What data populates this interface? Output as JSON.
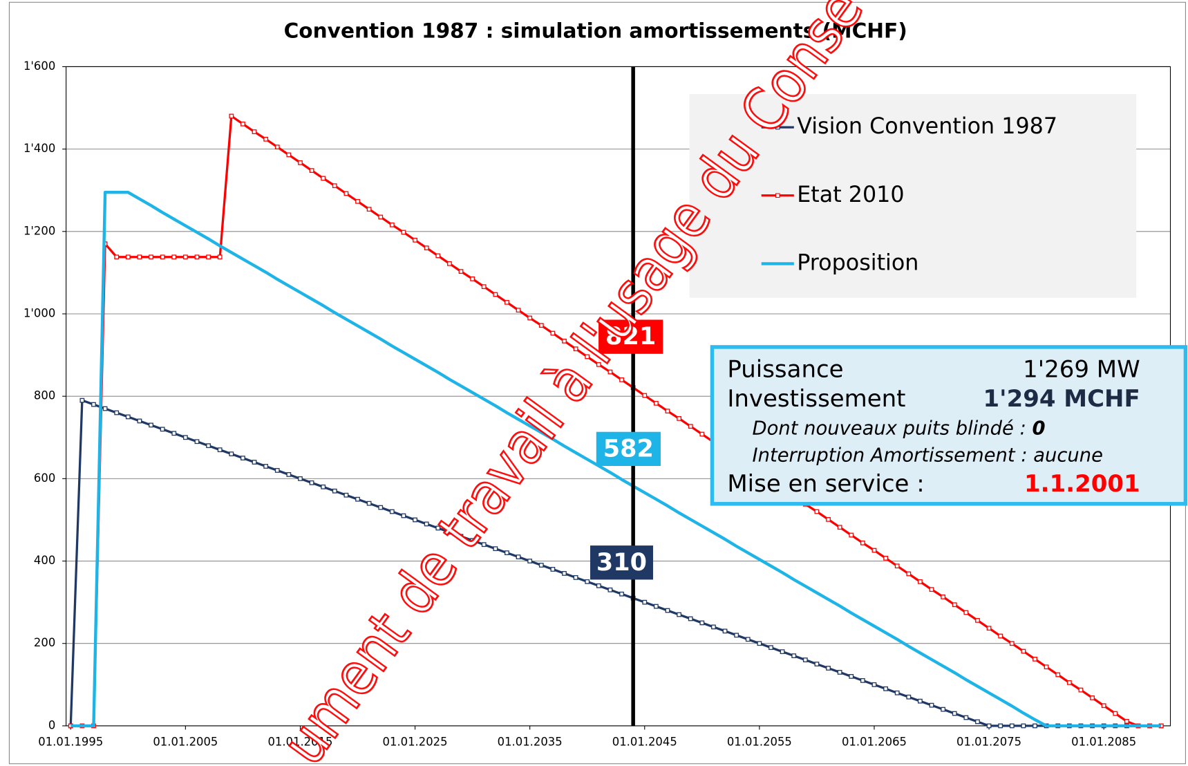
{
  "chart_data": {
    "type": "line",
    "title": "Convention 1987 : simulation amortissements (MCHF)",
    "x": [
      1995,
      1996,
      1997,
      1998,
      1999,
      2000,
      2001,
      2002,
      2003,
      2004,
      2005,
      2006,
      2007,
      2008,
      2009,
      2010,
      2011,
      2012,
      2013,
      2014,
      2015,
      2016,
      2017,
      2018,
      2019,
      2020,
      2021,
      2022,
      2023,
      2024,
      2025,
      2026,
      2027,
      2028,
      2029,
      2030,
      2031,
      2032,
      2033,
      2034,
      2035,
      2036,
      2037,
      2038,
      2039,
      2040,
      2041,
      2042,
      2043,
      2044,
      2045,
      2046,
      2047,
      2048,
      2049,
      2050,
      2051,
      2052,
      2053,
      2054,
      2055,
      2056,
      2057,
      2058,
      2059,
      2060,
      2061,
      2062,
      2063,
      2064,
      2065,
      2066,
      2067,
      2068,
      2069,
      2070,
      2071,
      2072,
      2073,
      2074,
      2075,
      2076,
      2077,
      2078,
      2079,
      2080,
      2081,
      2082,
      2083,
      2084,
      2085,
      2086,
      2087,
      2088,
      2089,
      2090
    ],
    "series": [
      {
        "name": "Vision Convention 1987",
        "color": "#1f3864",
        "markers": true,
        "values": [
          0,
          790,
          780,
          770,
          760,
          750,
          740,
          730,
          720,
          710,
          700,
          690,
          680,
          670,
          660,
          650,
          640,
          630,
          620,
          610,
          600,
          590,
          580,
          570,
          560,
          550,
          540,
          530,
          520,
          510,
          500,
          490,
          480,
          470,
          460,
          450,
          440,
          430,
          420,
          410,
          400,
          390,
          380,
          370,
          360,
          350,
          340,
          330,
          320,
          310,
          300,
          290,
          280,
          270,
          260,
          250,
          240,
          230,
          220,
          210,
          200,
          190,
          180,
          170,
          160,
          150,
          140,
          130,
          120,
          110,
          100,
          90,
          80,
          70,
          60,
          50,
          40,
          30,
          20,
          10,
          0,
          0,
          0,
          0,
          0,
          0,
          0,
          0,
          0,
          0,
          0,
          0,
          0,
          0,
          0,
          0
        ]
      },
      {
        "name": "Etat 2010",
        "color": "#ff0000",
        "markers": true,
        "values": [
          0,
          0,
          0,
          1170,
          1138,
          1138,
          1138,
          1138,
          1138,
          1138,
          1138,
          1138,
          1138,
          1138,
          1480,
          1461,
          1442,
          1424,
          1405,
          1386,
          1367,
          1348,
          1329,
          1311,
          1292,
          1273,
          1254,
          1235,
          1216,
          1198,
          1179,
          1160,
          1141,
          1122,
          1103,
          1085,
          1066,
          1047,
          1028,
          1009,
          990,
          972,
          953,
          934,
          915,
          896,
          877,
          859,
          840,
          821,
          802,
          783,
          764,
          746,
          727,
          708,
          689,
          670,
          651,
          633,
          614,
          595,
          576,
          557,
          538,
          520,
          501,
          482,
          463,
          444,
          426,
          407,
          388,
          369,
          350,
          331,
          313,
          294,
          275,
          256,
          237,
          218,
          200,
          181,
          162,
          143,
          124,
          105,
          87,
          68,
          49,
          30,
          11,
          0,
          0,
          0
        ]
      },
      {
        "name": "Proposition",
        "color": "#1fb4e8",
        "markers": false,
        "values": [
          0,
          0,
          0,
          1295,
          1295,
          1295,
          1279,
          1263,
          1246,
          1230,
          1214,
          1198,
          1182,
          1165,
          1149,
          1133,
          1117,
          1101,
          1084,
          1068,
          1052,
          1036,
          1020,
          1003,
          987,
          971,
          955,
          939,
          922,
          906,
          890,
          874,
          858,
          841,
          825,
          809,
          793,
          777,
          760,
          744,
          728,
          712,
          696,
          679,
          663,
          647,
          631,
          615,
          598,
          582,
          566,
          550,
          534,
          517,
          501,
          485,
          469,
          453,
          436,
          420,
          404,
          388,
          372,
          355,
          339,
          323,
          307,
          291,
          274,
          258,
          242,
          226,
          210,
          193,
          177,
          161,
          145,
          129,
          112,
          96,
          80,
          64,
          48,
          31,
          15,
          0,
          0,
          0,
          0,
          0,
          0,
          0,
          0,
          0,
          0,
          0
        ]
      }
    ],
    "xlim": [
      1994.6,
      2090.8
    ],
    "xticks": [
      {
        "value": 1995,
        "label": "01.01.1995"
      },
      {
        "value": 2005,
        "label": "01.01.2005"
      },
      {
        "value": 2015,
        "label": "01.01.2015"
      },
      {
        "value": 2025,
        "label": "01.01.2025"
      },
      {
        "value": 2035,
        "label": "01.01.2035"
      },
      {
        "value": 2045,
        "label": "01.01.2045"
      },
      {
        "value": 2055,
        "label": "01.01.2055"
      },
      {
        "value": 2065,
        "label": "01.01.2065"
      },
      {
        "value": 2075,
        "label": "01.01.2075"
      },
      {
        "value": 2085,
        "label": "01.01.2085"
      }
    ],
    "ylim": [
      0,
      1600
    ],
    "yticks": [
      0,
      200,
      400,
      600,
      800,
      {
        "value": 1000,
        "label": "1'000"
      },
      {
        "value": 1200,
        "label": "1'200"
      },
      {
        "value": 1400,
        "label": "1'400"
      },
      {
        "value": 1600,
        "label": "1'600"
      }
    ],
    "grid": true,
    "legend": "upper right",
    "vline": 2044,
    "annotations": [
      {
        "text": "821",
        "color": "#ff0000"
      },
      {
        "text": "582",
        "color": "#1fb4e8"
      },
      {
        "text": "310",
        "color": "#1f3864"
      }
    ],
    "info_box": {
      "puissance_label": "Puissance",
      "puissance": "1'269 MW",
      "invest_label": "Investissement",
      "invest": "1'294 MCHF",
      "puits_label": "Dont nouveaux puits blindé : ",
      "puits": "0",
      "interruption": "Interruption Amortissement : aucune",
      "service_label": "Mise en service :",
      "service": "1.1.2001"
    },
    "watermark": "ument de travail à l'usage du Conse"
  }
}
